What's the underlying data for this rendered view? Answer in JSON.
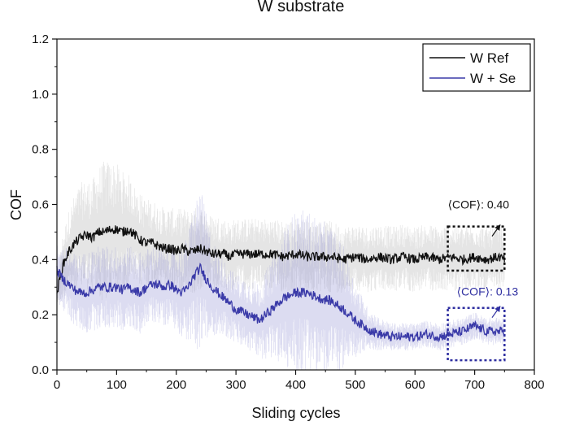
{
  "chart_data": {
    "type": "line",
    "title": "W substrate",
    "xlabel": "Sliding cycles",
    "ylabel": "COF",
    "xlim": [
      0,
      800
    ],
    "ylim": [
      0.0,
      1.2
    ],
    "x_ticks": [
      "0",
      "100",
      "200",
      "300",
      "400",
      "500",
      "600",
      "700",
      "800"
    ],
    "y_ticks": [
      "0.0",
      "0.2",
      "0.4",
      "0.6",
      "0.8",
      "1.0",
      "1.2"
    ],
    "grid": false,
    "legend_position": "top-right",
    "series": [
      {
        "name": "W Ref",
        "color": "#111111",
        "band_color": "#b5b5b5",
        "x": [
          0,
          10,
          20,
          30,
          40,
          50,
          60,
          70,
          80,
          90,
          100,
          110,
          120,
          130,
          140,
          150,
          160,
          170,
          180,
          190,
          200,
          210,
          220,
          230,
          240,
          250,
          260,
          270,
          280,
          290,
          300,
          320,
          340,
          360,
          380,
          400,
          420,
          440,
          460,
          480,
          500,
          520,
          540,
          560,
          580,
          600,
          620,
          640,
          660,
          680,
          700,
          720,
          740,
          750
        ],
        "y": [
          0.28,
          0.38,
          0.43,
          0.46,
          0.48,
          0.49,
          0.48,
          0.5,
          0.5,
          0.51,
          0.51,
          0.5,
          0.51,
          0.49,
          0.47,
          0.46,
          0.46,
          0.45,
          0.44,
          0.44,
          0.43,
          0.44,
          0.43,
          0.43,
          0.44,
          0.43,
          0.42,
          0.42,
          0.42,
          0.41,
          0.42,
          0.42,
          0.42,
          0.42,
          0.41,
          0.42,
          0.41,
          0.41,
          0.41,
          0.4,
          0.41,
          0.4,
          0.41,
          0.4,
          0.41,
          0.4,
          0.41,
          0.4,
          0.41,
          0.4,
          0.41,
          0.4,
          0.41,
          0.4
        ],
        "band_halfwidth": [
          0.05,
          0.12,
          0.15,
          0.18,
          0.2,
          0.2,
          0.21,
          0.24,
          0.26,
          0.25,
          0.24,
          0.22,
          0.2,
          0.18,
          0.17,
          0.16,
          0.16,
          0.15,
          0.15,
          0.15,
          0.15,
          0.15,
          0.15,
          0.16,
          0.15,
          0.14,
          0.14,
          0.14,
          0.13,
          0.13,
          0.13,
          0.13,
          0.13,
          0.13,
          0.13,
          0.13,
          0.13,
          0.13,
          0.13,
          0.12,
          0.12,
          0.12,
          0.12,
          0.12,
          0.12,
          0.12,
          0.12,
          0.12,
          0.12,
          0.12,
          0.12,
          0.12,
          0.12,
          0.12
        ]
      },
      {
        "name": "W + Se",
        "color": "#3a3aa8",
        "band_color": "#8a8ad0",
        "x": [
          0,
          10,
          20,
          30,
          40,
          50,
          60,
          70,
          80,
          90,
          100,
          110,
          120,
          130,
          140,
          150,
          160,
          170,
          180,
          190,
          200,
          210,
          220,
          230,
          240,
          250,
          260,
          270,
          280,
          290,
          300,
          320,
          340,
          360,
          380,
          400,
          420,
          440,
          460,
          480,
          500,
          520,
          540,
          560,
          580,
          600,
          620,
          640,
          660,
          680,
          700,
          720,
          740,
          750
        ],
        "y": [
          0.36,
          0.33,
          0.31,
          0.29,
          0.28,
          0.28,
          0.29,
          0.3,
          0.3,
          0.3,
          0.3,
          0.29,
          0.3,
          0.29,
          0.28,
          0.3,
          0.31,
          0.31,
          0.3,
          0.31,
          0.29,
          0.28,
          0.3,
          0.34,
          0.37,
          0.33,
          0.3,
          0.28,
          0.26,
          0.24,
          0.22,
          0.2,
          0.18,
          0.22,
          0.26,
          0.28,
          0.28,
          0.26,
          0.25,
          0.22,
          0.18,
          0.15,
          0.13,
          0.12,
          0.12,
          0.12,
          0.13,
          0.12,
          0.13,
          0.14,
          0.16,
          0.14,
          0.14,
          0.14
        ],
        "band_halfwidth": [
          0.1,
          0.12,
          0.13,
          0.13,
          0.14,
          0.15,
          0.15,
          0.15,
          0.15,
          0.15,
          0.15,
          0.15,
          0.15,
          0.15,
          0.15,
          0.14,
          0.14,
          0.14,
          0.14,
          0.14,
          0.15,
          0.16,
          0.2,
          0.26,
          0.3,
          0.24,
          0.18,
          0.15,
          0.14,
          0.13,
          0.13,
          0.13,
          0.14,
          0.18,
          0.25,
          0.3,
          0.3,
          0.29,
          0.27,
          0.23,
          0.14,
          0.08,
          0.06,
          0.05,
          0.05,
          0.05,
          0.05,
          0.05,
          0.05,
          0.05,
          0.05,
          0.05,
          0.05,
          0.05
        ]
      }
    ],
    "annotations": [
      {
        "text": "⟨COF⟩: 0.40",
        "color": "#111111",
        "box": {
          "x0": 655,
          "x1": 750,
          "y0": 0.36,
          "y1": 0.52
        },
        "label_at": {
          "x": 655,
          "y": 0.585
        },
        "arrow_to": {
          "x": 740,
          "y": 0.52
        }
      },
      {
        "text": "⟨COF⟩: 0.13",
        "color": "#2e2ea0",
        "box": {
          "x0": 655,
          "x1": 750,
          "y0": 0.035,
          "y1": 0.225
        },
        "label_at": {
          "x": 670,
          "y": 0.27
        },
        "arrow_to": {
          "x": 740,
          "y": 0.225
        }
      }
    ]
  }
}
